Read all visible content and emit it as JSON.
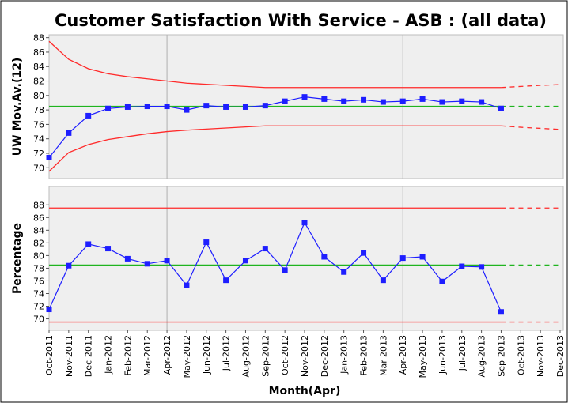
{
  "chart_data": [
    {
      "type": "line",
      "title": "Customer Satisfaction With Service - ASB : (all data)",
      "ylabel": "UW Mov.Av.(12)",
      "ylim": [
        68.5,
        88.4
      ],
      "yticks": [
        70,
        72,
        74,
        76,
        78,
        80,
        82,
        84,
        86,
        88
      ],
      "values": [
        71.4,
        74.8,
        77.2,
        78.2,
        78.4,
        78.5,
        78.5,
        78.0,
        78.6,
        78.4,
        78.4,
        78.6,
        79.2,
        79.8,
        79.5,
        79.2,
        79.4,
        79.1,
        79.2,
        79.5,
        79.1,
        79.2,
        79.1,
        78.2,
        null,
        null,
        null
      ],
      "center": [
        78.5,
        78.5,
        78.5,
        78.5,
        78.5,
        78.5,
        78.5,
        78.5,
        78.5,
        78.5,
        78.5,
        78.5,
        78.5,
        78.5,
        78.5,
        78.5,
        78.5,
        78.5,
        78.5,
        78.5,
        78.5,
        78.5,
        78.5,
        78.5,
        null,
        null,
        null
      ],
      "ucl": [
        87.5,
        85.0,
        83.7,
        83.0,
        82.6,
        82.3,
        82.0,
        81.7,
        81.55,
        81.4,
        81.25,
        81.1,
        81.1,
        81.1,
        81.1,
        81.1,
        81.1,
        81.1,
        81.1,
        81.1,
        81.1,
        81.1,
        81.1,
        81.1,
        null,
        null,
        null
      ],
      "lcl": [
        69.5,
        72.1,
        73.2,
        73.9,
        74.3,
        74.7,
        75.0,
        75.2,
        75.35,
        75.5,
        75.65,
        75.8,
        75.8,
        75.8,
        75.8,
        75.8,
        75.8,
        75.8,
        75.8,
        75.8,
        75.8,
        75.8,
        75.8,
        75.8,
        null,
        null,
        null
      ],
      "center_projection": [
        null,
        null,
        null,
        null,
        null,
        null,
        null,
        null,
        null,
        null,
        null,
        null,
        null,
        null,
        null,
        null,
        null,
        null,
        null,
        null,
        null,
        null,
        null,
        78.5,
        78.5,
        78.5,
        78.5
      ],
      "ucl_projection": [
        null,
        null,
        null,
        null,
        null,
        null,
        null,
        null,
        null,
        null,
        null,
        null,
        null,
        null,
        null,
        null,
        null,
        null,
        null,
        null,
        null,
        null,
        null,
        81.1,
        81.25,
        81.4,
        81.5
      ],
      "lcl_projection": [
        null,
        null,
        null,
        null,
        null,
        null,
        null,
        null,
        null,
        null,
        null,
        null,
        null,
        null,
        null,
        null,
        null,
        null,
        null,
        null,
        null,
        null,
        null,
        75.8,
        75.6,
        75.45,
        75.3
      ],
      "color": "#1e1eff",
      "limit_color": "#ff2a2a",
      "center_color": "#1fb41f"
    },
    {
      "type": "line",
      "ylabel": "Percentage",
      "xlabel": "Month(Apr)",
      "categories": [
        "Oct-2011",
        "Nov-2011",
        "Dec-2011",
        "Jan-2012",
        "Feb-2012",
        "Mar-2012",
        "Apr-2012",
        "May-2012",
        "Jun-2012",
        "Jul-2012",
        "Aug-2012",
        "Sep-2012",
        "Oct-2012",
        "Nov-2012",
        "Dec-2012",
        "Jan-2013",
        "Feb-2013",
        "Mar-2013",
        "Apr-2013",
        "May-2013",
        "Jun-2013",
        "Jul-2013",
        "Aug-2013",
        "Sep-2013",
        "Oct-2013",
        "Nov-2013",
        "Dec-2013"
      ],
      "xgrid": [
        "Apr-2012",
        "Apr-2013"
      ],
      "ylim": [
        68.2,
        90.9
      ],
      "yticks": [
        70,
        72,
        74,
        76,
        78,
        80,
        82,
        84,
        86,
        88
      ],
      "values": [
        71.5,
        78.4,
        81.8,
        81.1,
        79.5,
        78.7,
        79.2,
        75.3,
        82.1,
        76.1,
        79.2,
        81.1,
        77.7,
        85.2,
        79.8,
        77.4,
        80.4,
        76.1,
        79.6,
        79.8,
        75.9,
        78.3,
        78.2,
        71.1,
        null,
        null,
        null
      ],
      "center": [
        78.5,
        78.5,
        78.5,
        78.5,
        78.5,
        78.5,
        78.5,
        78.5,
        78.5,
        78.5,
        78.5,
        78.5,
        78.5,
        78.5,
        78.5,
        78.5,
        78.5,
        78.5,
        78.5,
        78.5,
        78.5,
        78.5,
        78.5,
        78.5,
        null,
        null,
        null
      ],
      "ucl": [
        87.5,
        87.5,
        87.5,
        87.5,
        87.5,
        87.5,
        87.5,
        87.5,
        87.5,
        87.5,
        87.5,
        87.5,
        87.5,
        87.5,
        87.5,
        87.5,
        87.5,
        87.5,
        87.5,
        87.5,
        87.5,
        87.5,
        87.5,
        87.5,
        null,
        null,
        null
      ],
      "lcl": [
        69.5,
        69.5,
        69.5,
        69.5,
        69.5,
        69.5,
        69.5,
        69.5,
        69.5,
        69.5,
        69.5,
        69.5,
        69.5,
        69.5,
        69.5,
        69.5,
        69.5,
        69.5,
        69.5,
        69.5,
        69.5,
        69.5,
        69.5,
        69.5,
        null,
        null,
        null
      ],
      "center_projection": [
        null,
        null,
        null,
        null,
        null,
        null,
        null,
        null,
        null,
        null,
        null,
        null,
        null,
        null,
        null,
        null,
        null,
        null,
        null,
        null,
        null,
        null,
        null,
        78.5,
        78.5,
        78.5,
        78.5
      ],
      "ucl_projection": [
        null,
        null,
        null,
        null,
        null,
        null,
        null,
        null,
        null,
        null,
        null,
        null,
        null,
        null,
        null,
        null,
        null,
        null,
        null,
        null,
        null,
        null,
        null,
        87.5,
        87.5,
        87.5,
        87.5
      ],
      "lcl_projection": [
        null,
        null,
        null,
        null,
        null,
        null,
        null,
        null,
        null,
        null,
        null,
        null,
        null,
        null,
        null,
        null,
        null,
        null,
        null,
        null,
        null,
        null,
        null,
        69.5,
        69.5,
        69.5,
        69.5
      ],
      "color": "#1e1eff",
      "limit_color": "#ff2a2a",
      "center_color": "#1fb41f"
    }
  ]
}
